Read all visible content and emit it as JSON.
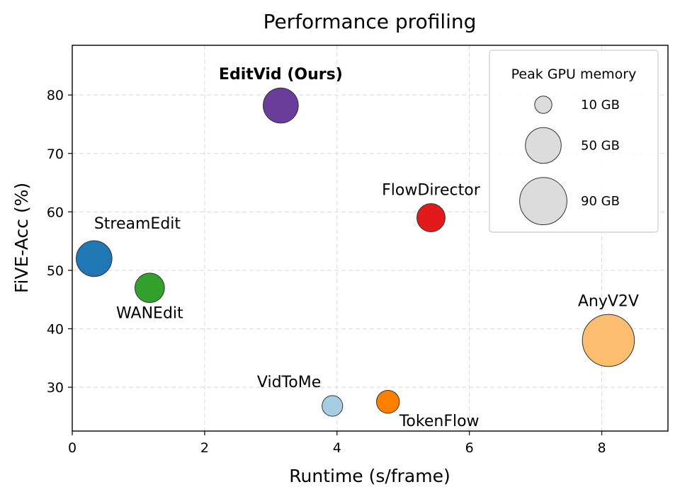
{
  "chart_data": {
    "type": "scatter",
    "title": "Performance profiling",
    "xlabel": "Runtime (s/frame)",
    "ylabel": "FiVE-Acc (%)",
    "xlim": [
      0,
      9
    ],
    "ylim": [
      22.5,
      88.5
    ],
    "xticks": [
      0,
      2,
      4,
      6,
      8
    ],
    "yticks": [
      30,
      40,
      50,
      60,
      70,
      80
    ],
    "grid": true,
    "legend": {
      "title": "Peak GPU memory",
      "placement": "top-right",
      "entries": [
        {
          "label": "10 GB",
          "memory_gb": 10
        },
        {
          "label": "50 GB",
          "memory_gb": 50
        },
        {
          "label": "90 GB",
          "memory_gb": 90
        }
      ]
    },
    "points": [
      {
        "name": "EditVid (Ours)",
        "x": 3.15,
        "y": 78.2,
        "memory_gb": 48,
        "color": "#6a3d9a",
        "bold": true,
        "label_pos": "above"
      },
      {
        "name": "FlowDirector",
        "x": 5.42,
        "y": 59.0,
        "memory_gb": 30,
        "color": "#e31a1c",
        "bold": false,
        "label_pos": "above"
      },
      {
        "name": "StreamEdit",
        "x": 0.33,
        "y": 52.0,
        "memory_gb": 50,
        "color": "#1f78b4",
        "bold": false,
        "label_pos": "above-right"
      },
      {
        "name": "WANEdit",
        "x": 1.17,
        "y": 47.0,
        "memory_gb": 33,
        "color": "#33a02c",
        "bold": false,
        "label_pos": "below"
      },
      {
        "name": "AnyV2V",
        "x": 8.1,
        "y": 38.0,
        "memory_gb": 110,
        "color": "#fdbf6f",
        "bold": false,
        "label_pos": "above"
      },
      {
        "name": "VidToMe",
        "x": 3.93,
        "y": 26.8,
        "memory_gb": 15,
        "color": "#a6cee3",
        "bold": false,
        "label_pos": "above-left"
      },
      {
        "name": "TokenFlow",
        "x": 4.77,
        "y": 27.5,
        "memory_gb": 19,
        "color": "#ff7f00",
        "bold": false,
        "label_pos": "below-right"
      }
    ]
  }
}
